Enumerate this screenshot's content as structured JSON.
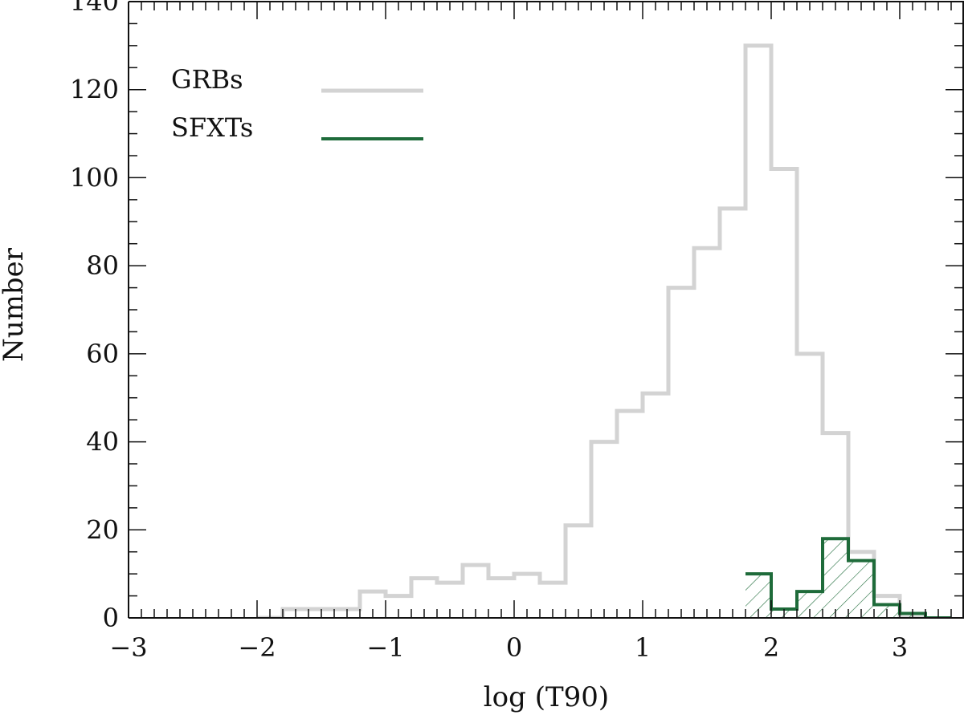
{
  "chart_data": {
    "type": "histogram",
    "xlabel": "log (T90)",
    "ylabel": "Number",
    "xlim": [
      -3,
      3.5
    ],
    "ylim": [
      0,
      140
    ],
    "xticks": [
      -3,
      -2,
      -1,
      0,
      1,
      2,
      3
    ],
    "xtick_labels": [
      "−3",
      "−2",
      "−1",
      "0",
      "1",
      "2",
      "3"
    ],
    "yticks": [
      0,
      20,
      40,
      60,
      80,
      100,
      120,
      140
    ],
    "ytick_labels": [
      "0",
      "20",
      "40",
      "60",
      "80",
      "100",
      "120",
      "140"
    ],
    "bin_width": 0.2,
    "grid": false,
    "legend_position": "top-left",
    "series": [
      {
        "name": "GRBs",
        "color": "#d3d3d3",
        "fill": "none",
        "bin_starts": [
          -2.0,
          -1.8,
          -1.6,
          -1.4,
          -1.2,
          -1.0,
          -0.8,
          -0.6,
          -0.4,
          -0.2,
          0.0,
          0.2,
          0.4,
          0.6,
          0.8,
          1.0,
          1.2,
          1.4,
          1.6,
          1.8,
          2.0,
          2.2,
          2.4,
          2.6,
          2.8,
          3.0
        ],
        "values": [
          0,
          2,
          2,
          2,
          6,
          5,
          9,
          8,
          12,
          9,
          10,
          8,
          21,
          40,
          47,
          51,
          75,
          84,
          93,
          130,
          102,
          60,
          42,
          15,
          5,
          0
        ]
      },
      {
        "name": "SFXTs",
        "color": "#1e6b3a",
        "fill": "hatched",
        "bin_starts": [
          1.8,
          2.0,
          2.2,
          2.4,
          2.6,
          2.8,
          3.0,
          3.2
        ],
        "values": [
          10,
          2,
          6,
          18,
          13,
          3,
          1,
          0
        ]
      }
    ]
  }
}
